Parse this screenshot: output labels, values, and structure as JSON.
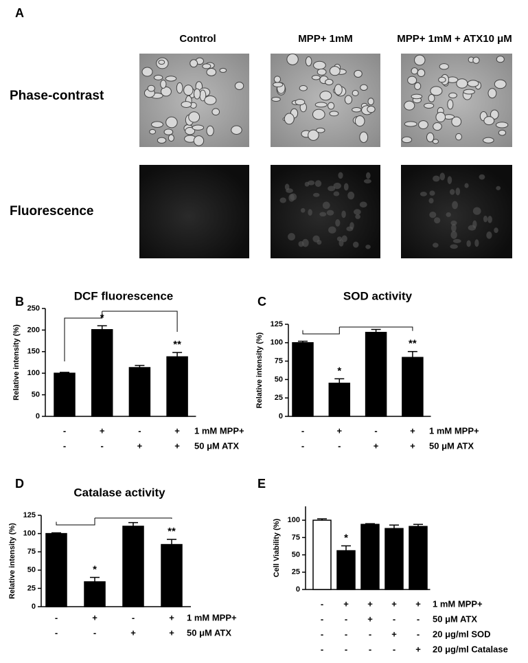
{
  "panel_a": {
    "label": "A",
    "columns": [
      "Control",
      "MPP+ 1mM",
      "MPP+ 1mM + ATX10 μM"
    ],
    "rows": [
      "Phase-contrast",
      "Fluorescence"
    ]
  },
  "chart_data": [
    {
      "type": "bar",
      "panel": "B",
      "title": "DCF fluorescence",
      "y_label": "Relative intensity (%)",
      "ylim": [
        0,
        250
      ],
      "yticks": [
        0,
        50,
        100,
        150,
        200,
        250
      ],
      "values": [
        100,
        201,
        113,
        138
      ],
      "errors": [
        2,
        9,
        5,
        10
      ],
      "colors": [
        "#000000",
        "#000000",
        "#000000",
        "#000000"
      ],
      "significance": [
        null,
        "*",
        null,
        "**"
      ],
      "conditions": [
        {
          "label": "1 mM MPP+",
          "signs": [
            "-",
            "+",
            "-",
            "+"
          ]
        },
        {
          "label": "50  μM ATX",
          "signs": [
            "-",
            "-",
            "+",
            "+"
          ]
        }
      ]
    },
    {
      "type": "bar",
      "panel": "C",
      "title": "SOD activity",
      "y_label": "Relative intensity (%)",
      "ylim": [
        0,
        125
      ],
      "yticks": [
        0,
        25,
        50,
        75,
        100,
        125
      ],
      "values": [
        100,
        45,
        114,
        80
      ],
      "errors": [
        2,
        6,
        4,
        8
      ],
      "colors": [
        "#000000",
        "#000000",
        "#000000",
        "#000000"
      ],
      "significance": [
        null,
        "*",
        null,
        "**"
      ],
      "conditions": [
        {
          "label": "1 mM MPP+",
          "signs": [
            "-",
            "+",
            "-",
            "+"
          ]
        },
        {
          "label": "50  μM ATX",
          "signs": [
            "-",
            "-",
            "+",
            "+"
          ]
        }
      ]
    },
    {
      "type": "bar",
      "panel": "D",
      "title": "Catalase activity",
      "y_label": "Relative intensity (%)",
      "ylim": [
        0,
        125
      ],
      "yticks": [
        0,
        25,
        50,
        75,
        100,
        125
      ],
      "values": [
        100,
        34,
        110,
        85
      ],
      "errors": [
        1,
        6,
        5,
        7
      ],
      "colors": [
        "#000000",
        "#000000",
        "#000000",
        "#000000"
      ],
      "significance": [
        null,
        "*",
        null,
        "**"
      ],
      "conditions": [
        {
          "label": "1 mM MPP+",
          "signs": [
            "-",
            "+",
            "-",
            "+"
          ]
        },
        {
          "label": "50  μM ATX",
          "signs": [
            "-",
            "-",
            "+",
            "+"
          ]
        }
      ]
    },
    {
      "type": "bar",
      "panel": "E",
      "y_label": "Cell Viability (%)",
      "ylim": [
        0,
        120
      ],
      "yticks": [
        0,
        25,
        50,
        75,
        100
      ],
      "values": [
        100,
        56,
        94,
        88,
        91
      ],
      "errors": [
        2,
        7,
        1,
        5,
        3
      ],
      "colors": [
        "#ffffff",
        "#000000",
        "#000000",
        "#000000",
        "#000000"
      ],
      "significance": [
        null,
        "*",
        null,
        null,
        null
      ],
      "conditions": [
        {
          "label": "1 mM MPP+",
          "signs": [
            "-",
            "+",
            "+",
            "+",
            "+"
          ]
        },
        {
          "label": "50  μM ATX",
          "signs": [
            "-",
            "-",
            "+",
            "-",
            "-"
          ]
        },
        {
          "label": "20 μg/ml SOD",
          "signs": [
            "-",
            "-",
            "-",
            "+",
            "-"
          ]
        },
        {
          "label": "20 μg/ml Catalase",
          "signs": [
            "-",
            "-",
            "-",
            "-",
            "+"
          ]
        }
      ]
    }
  ]
}
